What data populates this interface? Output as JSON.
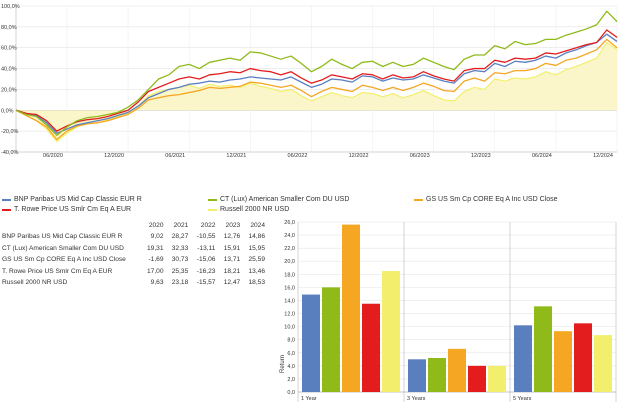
{
  "colors": {
    "bnp": "#5a7fbf",
    "ct": "#8fba1a",
    "gs": "#f5a623",
    "trowe": "#e31d1d",
    "russell": "#f3ef6c",
    "russell_fill": "#faf5c4"
  },
  "chart_data": [
    {
      "type": "line",
      "title": "",
      "y_ticks": [
        "100,0%",
        "80,0%",
        "60,0%",
        "40,0%",
        "20,0%",
        "0,0%",
        "-20,0%",
        "-40,0%"
      ],
      "ylim": [
        -40,
        100
      ],
      "x_ticks": [
        "06/2020",
        "12/2020",
        "06/2021",
        "12/2021",
        "06/2022",
        "12/2022",
        "06/2023",
        "12/2023",
        "06/2024",
        "12/2024"
      ],
      "xlim": [
        0,
        59
      ],
      "x_tick_positions": [
        5,
        11,
        17,
        23,
        29,
        35,
        41,
        47,
        53,
        59
      ],
      "series": [
        {
          "name": "BNP Paribas US Mid Cap Classic EUR R",
          "key": "bnp",
          "values": [
            0,
            -3,
            -5,
            -12,
            -22,
            -18,
            -14,
            -12,
            -10,
            -8,
            -5,
            -2,
            4,
            12,
            16,
            20,
            22,
            25,
            26,
            28,
            27,
            29,
            30,
            32,
            31,
            30,
            29,
            32,
            27,
            22,
            25,
            30,
            29,
            27,
            33,
            32,
            28,
            31,
            29,
            30,
            34,
            31,
            28,
            26,
            35,
            38,
            37,
            45,
            42,
            47,
            46,
            48,
            52,
            50,
            55,
            58,
            62,
            65,
            73,
            66
          ]
        },
        {
          "name": "CT (Lux) American Smaller Com DU USD",
          "key": "ct",
          "values": [
            0,
            -4,
            -6,
            -14,
            -24,
            -16,
            -10,
            -7,
            -6,
            -4,
            -2,
            3,
            10,
            20,
            30,
            34,
            42,
            44,
            40,
            46,
            48,
            50,
            48,
            56,
            55,
            52,
            49,
            52,
            45,
            37,
            42,
            49,
            44,
            40,
            46,
            47,
            42,
            46,
            42,
            44,
            50,
            46,
            42,
            39,
            49,
            53,
            53,
            62,
            59,
            66,
            63,
            64,
            68,
            68,
            72,
            75,
            78,
            82,
            95,
            85
          ]
        },
        {
          "name": "GS US Sm Cp CORE Eq A Inc USD Close",
          "key": "gs",
          "values": [
            0,
            -5,
            -10,
            -16,
            -28,
            -20,
            -15,
            -13,
            -12,
            -10,
            -7,
            -4,
            2,
            10,
            12,
            14,
            15,
            17,
            19,
            22,
            21,
            22,
            23,
            27,
            26,
            24,
            22,
            24,
            19,
            13,
            18,
            22,
            20,
            18,
            24,
            22,
            19,
            22,
            19,
            22,
            26,
            23,
            19,
            18,
            28,
            31,
            28,
            36,
            35,
            38,
            38,
            40,
            45,
            43,
            48,
            50,
            54,
            58,
            68,
            60
          ]
        },
        {
          "name": "T. Rowe Price US Smlr Cm Eq A EUR",
          "key": "trowe",
          "values": [
            0,
            -3,
            -4,
            -10,
            -20,
            -15,
            -11,
            -9,
            -8,
            -6,
            -3,
            0,
            8,
            18,
            22,
            26,
            30,
            32,
            30,
            34,
            35,
            37,
            36,
            40,
            38,
            37,
            34,
            37,
            31,
            26,
            29,
            34,
            32,
            30,
            35,
            34,
            30,
            34,
            31,
            32,
            37,
            33,
            30,
            28,
            38,
            40,
            40,
            48,
            46,
            50,
            49,
            50,
            55,
            54,
            57,
            60,
            63,
            65,
            77,
            70
          ]
        },
        {
          "name": "Russell 2000 NR USD",
          "key": "russell",
          "values": [
            0,
            -5,
            -10,
            -18,
            -30,
            -22,
            -16,
            -13,
            -12,
            -9,
            -6,
            -3,
            4,
            14,
            18,
            20,
            22,
            24,
            21,
            25,
            23,
            24,
            22,
            26,
            23,
            21,
            18,
            20,
            14,
            9,
            13,
            17,
            14,
            12,
            17,
            16,
            13,
            16,
            12,
            15,
            19,
            14,
            10,
            9,
            18,
            22,
            20,
            30,
            28,
            31,
            30,
            32,
            37,
            34,
            39,
            42,
            46,
            50,
            65,
            58
          ]
        }
      ]
    },
    {
      "type": "table",
      "columns": [
        "2020",
        "2021",
        "2022",
        "2023",
        "2024"
      ],
      "rows": [
        {
          "name": "BNP Paribas US Mid Cap Classic EUR R",
          "values": [
            "9,02",
            "28,27",
            "-10,55",
            "12,76",
            "14,86"
          ]
        },
        {
          "name": "CT (Lux) American Smaller Com DU USD",
          "values": [
            "19,31",
            "32,33",
            "-13,11",
            "15,91",
            "15,95"
          ]
        },
        {
          "name": "GS US Sm Cp CORE Eq A Inc USD Close",
          "values": [
            "-1,69",
            "30,73",
            "-15,06",
            "13,71",
            "25,59"
          ]
        },
        {
          "name": "T. Rowe Price US Smlr Cm Eq A EUR",
          "values": [
            "17,00",
            "25,35",
            "-16,23",
            "18,21",
            "13,46"
          ]
        },
        {
          "name": "Russell 2000 NR USD",
          "values": [
            "9,63",
            "23,18",
            "-15,57",
            "12,47",
            "18,53"
          ]
        }
      ]
    },
    {
      "type": "bar",
      "categories": [
        "1 Year",
        "3 Years",
        "5 Years"
      ],
      "ylabel": "Return",
      "ylim": [
        0,
        26
      ],
      "y_ticks": [
        "0,0",
        "2,0",
        "4,0",
        "6,0",
        "8,0",
        "10,0",
        "12,0",
        "14,0",
        "16,0",
        "18,0",
        "20,0",
        "22,0",
        "24,0",
        "26,0"
      ],
      "series": [
        {
          "name": "BNP Paribas US Mid Cap Classic EUR R",
          "key": "bnp",
          "values": [
            14.9,
            5.0,
            10.2
          ]
        },
        {
          "name": "CT (Lux) American Smaller Com DU USD",
          "key": "ct",
          "values": [
            16.0,
            5.2,
            13.1
          ]
        },
        {
          "name": "GS US Sm Cp CORE Eq A Inc USD Close",
          "key": "gs",
          "values": [
            25.6,
            6.6,
            9.3
          ]
        },
        {
          "name": "T. Rowe Price US Smlr Cm Eq A EUR",
          "key": "trowe",
          "values": [
            13.5,
            4.0,
            10.5
          ]
        },
        {
          "name": "Russell 2000 NR USD",
          "key": "russell",
          "values": [
            18.5,
            4.0,
            8.7
          ]
        }
      ]
    }
  ]
}
